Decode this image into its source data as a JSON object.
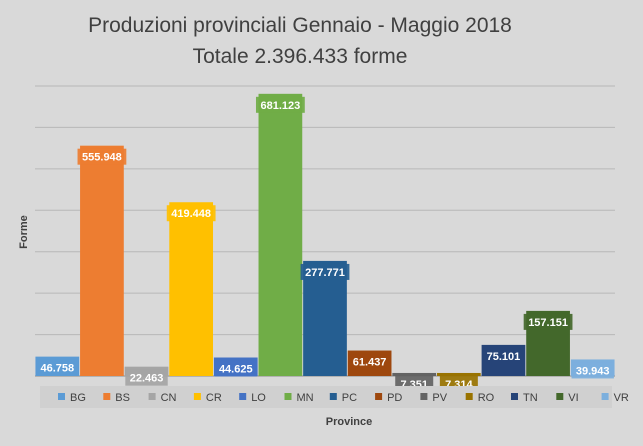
{
  "chart_data": {
    "type": "bar",
    "title": "Produzioni provinciali Gennaio - Maggio 2018",
    "subtitle": "Totale 2.396.433 forme",
    "xlabel": "Province",
    "ylabel": "Forme",
    "ylim": [
      0,
      700000
    ],
    "grid": true,
    "legend_position": "bottom",
    "categories": [
      "BG",
      "BS",
      "CN",
      "CR",
      "LO",
      "MN",
      "PC",
      "PD",
      "PV",
      "RO",
      "TN",
      "VI",
      "VR"
    ],
    "values": [
      46758,
      555948,
      22463,
      419448,
      44625,
      681123,
      277771,
      61437,
      7351,
      7314,
      75101,
      157151,
      39943
    ],
    "data_labels": [
      "46.758",
      "555.948",
      "22.463",
      "419.448",
      "44.625",
      "681.123",
      "277.771",
      "61.437",
      "7.351",
      "7.314",
      "75.101",
      "157.151",
      "39.943"
    ],
    "colors": [
      "#5b9bd5",
      "#ed7d31",
      "#a5a5a5",
      "#ffc000",
      "#4472c4",
      "#70ad47",
      "#255e91",
      "#9e480e",
      "#636363",
      "#997300",
      "#264478",
      "#43682b",
      "#7cafdd"
    ]
  }
}
